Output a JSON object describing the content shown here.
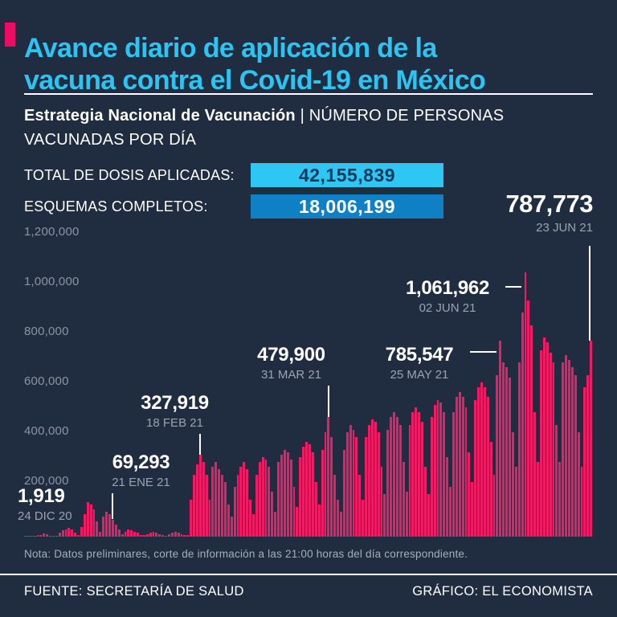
{
  "colors": {
    "background": "#202c40",
    "title_cyan": "#2bc4f3",
    "accent_pink": "#ec0c63",
    "bar_pink": "#ee1b65",
    "badge_cyan_bg": "#2ec6f2",
    "badge_cyan_text": "#10395c",
    "badge_blue_bg": "#0f80c4",
    "muted_gray": "#9aa3b3"
  },
  "header": {
    "title_line1": "Avance diario de aplicación de la",
    "title_line2": "vacuna contra el Covid-19 en México",
    "subtitle_bold": "Estrategia Nacional de Vacunación",
    "subtitle_sep": "|",
    "subtitle_rest": "NÚMERO DE PERSONAS VACUNADAS POR DÍA"
  },
  "stats": {
    "total_label": "TOTAL DE DOSIS APLICADAS:",
    "total_value": "42,155,839",
    "complete_label": "ESQUEMAS COMPLETOS:",
    "complete_value": "18,006,199"
  },
  "chart_data": {
    "type": "bar",
    "title": "Número de personas vacunadas por día",
    "start_date": "24 DIC 20",
    "end_date": "23 JUN 21",
    "ylim": [
      0,
      1200000
    ],
    "y_ticks": [
      "1,200,000",
      "1,000,000",
      "800,000",
      "600,000",
      "400,000",
      "200,000"
    ],
    "bar_color": "#ee1b65",
    "grid": false,
    "values": [
      1919,
      300,
      500,
      2000,
      5000,
      8000,
      12000,
      10000,
      2000,
      3000,
      4000,
      15000,
      25000,
      30000,
      35000,
      30000,
      15000,
      8000,
      40000,
      90000,
      140000,
      130000,
      110000,
      60000,
      20000,
      80000,
      100000,
      90000,
      69293,
      50000,
      30000,
      10000,
      20000,
      30000,
      25000,
      20000,
      15000,
      8000,
      5000,
      10000,
      15000,
      20000,
      15000,
      10000,
      5000,
      3000,
      10000,
      15000,
      20000,
      15000,
      10000,
      5000,
      5000,
      150000,
      250000,
      290000,
      327919,
      300000,
      250000,
      150000,
      280000,
      300000,
      270000,
      250000,
      220000,
      130000,
      80000,
      200000,
      250000,
      280000,
      300000,
      270000,
      150000,
      90000,
      250000,
      300000,
      320000,
      310000,
      280000,
      180000,
      100000,
      300000,
      330000,
      350000,
      340000,
      310000,
      200000,
      120000,
      320000,
      360000,
      380000,
      370000,
      340000,
      220000,
      130000,
      350000,
      420000,
      479900,
      400000,
      250000,
      150000,
      100000,
      350000,
      420000,
      450000,
      430000,
      400000,
      250000,
      150000,
      400000,
      450000,
      470000,
      460000,
      420000,
      280000,
      170000,
      430000,
      480000,
      500000,
      480000,
      450000,
      300000,
      180000,
      450000,
      500000,
      520000,
      500000,
      460000,
      280000,
      170000,
      480000,
      530000,
      550000,
      540000,
      500000,
      320000,
      200000,
      500000,
      560000,
      580000,
      560000,
      520000,
      340000,
      220000,
      550000,
      600000,
      620000,
      600000,
      560000,
      380000,
      250000,
      650000,
      785547,
      700000,
      680000,
      640000,
      420000,
      280000,
      700000,
      900000,
      1061962,
      950000,
      850000,
      500000,
      300000,
      750000,
      800000,
      780000,
      740000,
      700000,
      450000,
      300000,
      700000,
      730000,
      710000,
      680000,
      650000,
      420000,
      280000,
      600000,
      650000,
      787773
    ],
    "annotations": [
      {
        "value": "1,919",
        "date": "24 DIC 20"
      },
      {
        "value": "69,293",
        "date": "21 ENE 21"
      },
      {
        "value": "327,919",
        "date": "18 FEB 21"
      },
      {
        "value": "479,900",
        "date": "31 MAR 21"
      },
      {
        "value": "785,547",
        "date": "25 MAY 21"
      },
      {
        "value": "1,061,962",
        "date": "02 JUN 21"
      },
      {
        "value": "787,773",
        "date": "23 JUN 21"
      }
    ]
  },
  "note": "Nota: Datos preliminares, corte de información a las 21:00 horas del día correspondiente.",
  "footer": {
    "source": "FUENTE: SECRETARÍA DE SALUD",
    "credit": "GRÁFICO: EL ECONOMISTA"
  }
}
